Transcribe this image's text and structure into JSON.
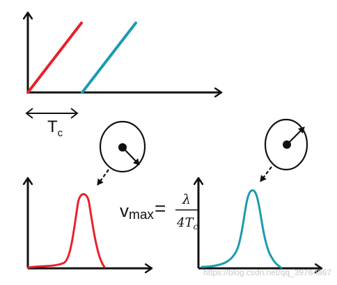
{
  "colors": {
    "axis": "#111111",
    "red": "#e8202a",
    "teal": "#1b9bae"
  },
  "top_plot": {
    "period_label_main": "T",
    "period_label_sub": "c"
  },
  "formula": {
    "v": "v",
    "v_sub": "max",
    "equals": "=",
    "numerator": "λ",
    "denominator_main": "4T",
    "denominator_sub": "c"
  },
  "watermark": "https://blog.csdn.net/qq_39764867"
}
